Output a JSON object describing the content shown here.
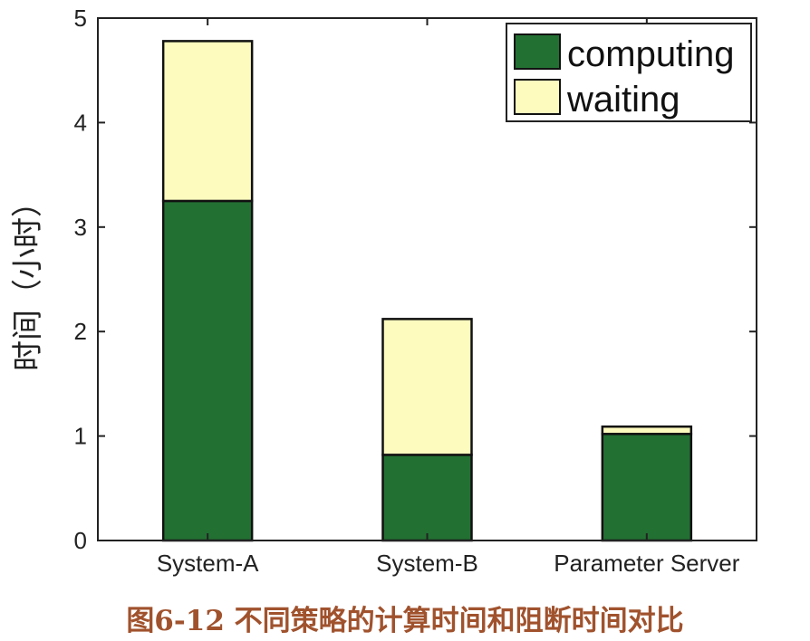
{
  "caption": "图6-12 不同策略的计算时间和阻断时间对比",
  "chart_data": {
    "type": "bar",
    "stacked": true,
    "categories": [
      "System-A",
      "System-B",
      "Parameter Server"
    ],
    "series": [
      {
        "name": "computing",
        "values": [
          3.25,
          0.82,
          1.02
        ],
        "color": "#237033"
      },
      {
        "name": "waiting",
        "values": [
          1.53,
          1.3,
          0.07
        ],
        "color": "#fdfbbe"
      }
    ],
    "ylabel": "时间（小时）",
    "xlabel": "",
    "ylim": [
      0,
      5
    ],
    "yticks": [
      0,
      1,
      2,
      3,
      4,
      5
    ],
    "grid": false,
    "legend_position": "top-right"
  }
}
